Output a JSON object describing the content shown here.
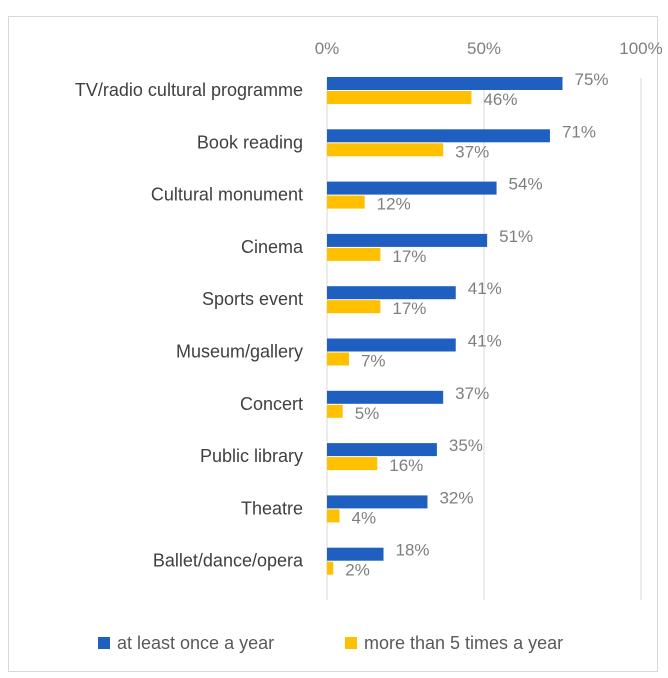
{
  "chart_data": {
    "type": "bar",
    "orientation": "horizontal",
    "categories": [
      "TV/radio cultural programme",
      "Book reading",
      "Cultural monument",
      "Cinema",
      "Sports event",
      "Museum/gallery",
      "Concert",
      "Public library",
      "Theatre",
      "Ballet/dance/opera"
    ],
    "series": [
      {
        "name": "at least once a year",
        "color": "#1f5fbf",
        "values": [
          75,
          71,
          54,
          51,
          41,
          41,
          37,
          35,
          32,
          18
        ],
        "labels": [
          "75%",
          "71%",
          "54%",
          "51%",
          "41%",
          "41%",
          "37%",
          "35%",
          "32%",
          "18%"
        ]
      },
      {
        "name": "more than 5 times a year",
        "color": "#ffc000",
        "values": [
          46,
          37,
          12,
          17,
          17,
          7,
          5,
          16,
          4,
          2
        ],
        "labels": [
          "46%",
          "37%",
          "12%",
          "17%",
          "17%",
          "7%",
          "5%",
          "16%",
          "4%",
          "2%"
        ]
      }
    ],
    "xlim": [
      0,
      100
    ],
    "xticks": [
      0,
      50,
      100
    ],
    "xtick_labels": [
      "0%",
      "50%",
      "100%"
    ],
    "x_axis_position": "top",
    "grid": true,
    "legend_position": "bottom",
    "title": "",
    "xlabel": "",
    "ylabel": ""
  }
}
